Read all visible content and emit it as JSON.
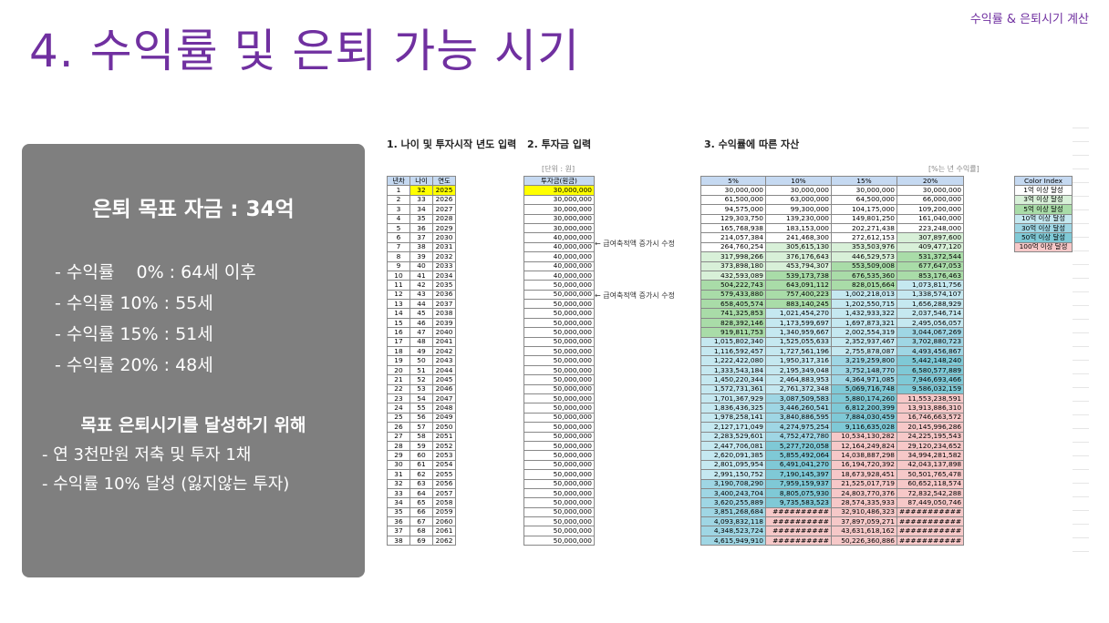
{
  "corner_label": "수익률 & 은퇴시기 계산",
  "title": "4. 수익률 및 은퇴 가능 시기",
  "summary": {
    "goal": "은퇴 목표 자금 : 34억",
    "rates": [
      "- 수익률    0% : 64세 이후",
      "- 수익률 10% : 55세",
      "- 수익률 15% : 51세",
      "- 수익률 20% : 48세"
    ],
    "subhead": "목표 은퇴시기를 달성하기 위해",
    "actions": [
      "- 연 3천만원 저축 및 투자 1채",
      "- 수익률 10% 달성 (잃지않는 투자)"
    ]
  },
  "sections": {
    "s1": "1. 나이 및 투자시작 년도 입력",
    "s2": "2. 투자금 입력",
    "s3": "3. 수익률에 따른 자산",
    "unit": "[단위 : 원]",
    "rate_note": "[%는 년 수익률]"
  },
  "notes": [
    "← 급여축적액 증가시 수정",
    "← 급여축적액 증가시 수정"
  ],
  "headers": {
    "t1": [
      "년차",
      "나이",
      "연도"
    ],
    "t2": "투자금(원금)",
    "t3": [
      "5%",
      "10%",
      "15%",
      "20%"
    ]
  },
  "legend": {
    "title": "Color Index",
    "items": [
      "1억 이상 달성",
      "3억 이상 달성",
      "5억 이상 달성",
      "10억 이상 달성",
      "30억 이상 달성",
      "50억 이상 달성",
      "100억 이상 달성"
    ],
    "colors": [
      "#ffffff",
      "#d8f0d8",
      "#a9dca8",
      "#c5e8f0",
      "#9fd6e4",
      "#7fc9d6",
      "#f6c8c8"
    ]
  },
  "rows": [
    [
      "1",
      "32",
      "2025",
      "30,000,000",
      "30,000,000",
      "30,000,000",
      "30,000,000",
      "30,000,000"
    ],
    [
      "2",
      "33",
      "2026",
      "30,000,000",
      "61,500,000",
      "63,000,000",
      "64,500,000",
      "66,000,000"
    ],
    [
      "3",
      "34",
      "2027",
      "30,000,000",
      "94,575,000",
      "99,300,000",
      "104,175,000",
      "109,200,000"
    ],
    [
      "4",
      "35",
      "2028",
      "30,000,000",
      "129,303,750",
      "139,230,000",
      "149,801,250",
      "161,040,000"
    ],
    [
      "5",
      "36",
      "2029",
      "30,000,000",
      "165,768,938",
      "183,153,000",
      "202,271,438",
      "223,248,000"
    ],
    [
      "6",
      "37",
      "2030",
      "40,000,000",
      "214,057,384",
      "241,468,300",
      "272,612,153",
      "307,897,600"
    ],
    [
      "7",
      "38",
      "2031",
      "40,000,000",
      "264,760,254",
      "305,615,130",
      "353,503,976",
      "409,477,120"
    ],
    [
      "8",
      "39",
      "2032",
      "40,000,000",
      "317,998,266",
      "376,176,643",
      "446,529,573",
      "531,372,544"
    ],
    [
      "9",
      "40",
      "2033",
      "40,000,000",
      "373,898,180",
      "453,794,307",
      "553,509,008",
      "677,647,053"
    ],
    [
      "10",
      "41",
      "2034",
      "40,000,000",
      "432,593,089",
      "539,173,738",
      "676,535,360",
      "853,176,463"
    ],
    [
      "11",
      "42",
      "2035",
      "50,000,000",
      "504,222,743",
      "643,091,112",
      "828,015,664",
      "1,073,811,756"
    ],
    [
      "12",
      "43",
      "2036",
      "50,000,000",
      "579,433,880",
      "757,400,223",
      "1,002,218,013",
      "1,338,574,107"
    ],
    [
      "13",
      "44",
      "2037",
      "50,000,000",
      "658,405,574",
      "883,140,245",
      "1,202,550,715",
      "1,656,288,929"
    ],
    [
      "14",
      "45",
      "2038",
      "50,000,000",
      "741,325,853",
      "1,021,454,270",
      "1,432,933,322",
      "2,037,546,714"
    ],
    [
      "15",
      "46",
      "2039",
      "50,000,000",
      "828,392,146",
      "1,173,599,697",
      "1,697,873,321",
      "2,495,056,057"
    ],
    [
      "16",
      "47",
      "2040",
      "50,000,000",
      "919,811,753",
      "1,340,959,667",
      "2,002,554,319",
      "3,044,067,269"
    ],
    [
      "17",
      "48",
      "2041",
      "50,000,000",
      "1,015,802,340",
      "1,525,055,633",
      "2,352,937,467",
      "3,702,880,723"
    ],
    [
      "18",
      "49",
      "2042",
      "50,000,000",
      "1,116,592,457",
      "1,727,561,196",
      "2,755,878,087",
      "4,493,456,867"
    ],
    [
      "19",
      "50",
      "2043",
      "50,000,000",
      "1,222,422,080",
      "1,950,317,316",
      "3,219,259,800",
      "5,442,148,240"
    ],
    [
      "20",
      "51",
      "2044",
      "50,000,000",
      "1,333,543,184",
      "2,195,349,048",
      "3,752,148,770",
      "6,580,577,889"
    ],
    [
      "21",
      "52",
      "2045",
      "50,000,000",
      "1,450,220,344",
      "2,464,883,953",
      "4,364,971,085",
      "7,946,693,466"
    ],
    [
      "22",
      "53",
      "2046",
      "50,000,000",
      "1,572,731,361",
      "2,761,372,348",
      "5,069,716,748",
      "9,586,032,159"
    ],
    [
      "23",
      "54",
      "2047",
      "50,000,000",
      "1,701,367,929",
      "3,087,509,583",
      "5,880,174,260",
      "11,553,238,591"
    ],
    [
      "24",
      "55",
      "2048",
      "50,000,000",
      "1,836,436,325",
      "3,446,260,541",
      "6,812,200,399",
      "13,913,886,310"
    ],
    [
      "25",
      "56",
      "2049",
      "50,000,000",
      "1,978,258,141",
      "3,840,886,595",
      "7,884,030,459",
      "16,746,663,572"
    ],
    [
      "26",
      "57",
      "2050",
      "50,000,000",
      "2,127,171,049",
      "4,274,975,254",
      "9,116,635,028",
      "20,145,996,286"
    ],
    [
      "27",
      "58",
      "2051",
      "50,000,000",
      "2,283,529,601",
      "4,752,472,780",
      "10,534,130,282",
      "24,225,195,543"
    ],
    [
      "28",
      "59",
      "2052",
      "50,000,000",
      "2,447,706,081",
      "5,277,720,058",
      "12,164,249,824",
      "29,120,234,652"
    ],
    [
      "29",
      "60",
      "2053",
      "50,000,000",
      "2,620,091,385",
      "5,855,492,064",
      "14,038,887,298",
      "34,994,281,582"
    ],
    [
      "30",
      "61",
      "2054",
      "50,000,000",
      "2,801,095,954",
      "6,491,041,270",
      "16,194,720,392",
      "42,043,137,898"
    ],
    [
      "31",
      "62",
      "2055",
      "50,000,000",
      "2,991,150,752",
      "7,190,145,397",
      "18,673,928,451",
      "50,501,765,478"
    ],
    [
      "32",
      "63",
      "2056",
      "50,000,000",
      "3,190,708,290",
      "7,959,159,937",
      "21,525,017,719",
      "60,652,118,574"
    ],
    [
      "33",
      "64",
      "2057",
      "50,000,000",
      "3,400,243,704",
      "8,805,075,930",
      "24,803,770,376",
      "72,832,542,288"
    ],
    [
      "34",
      "65",
      "2058",
      "50,000,000",
      "3,620,255,889",
      "9,735,583,523",
      "28,574,335,933",
      "87,449,050,746"
    ],
    [
      "35",
      "66",
      "2059",
      "50,000,000",
      "3,851,268,684",
      "##########",
      "32,910,486,323",
      "###########"
    ],
    [
      "36",
      "67",
      "2060",
      "50,000,000",
      "4,093,832,118",
      "##########",
      "37,897,059,271",
      "###########"
    ],
    [
      "37",
      "68",
      "2061",
      "50,000,000",
      "4,348,523,724",
      "##########",
      "43,631,618,162",
      "###########"
    ],
    [
      "38",
      "69",
      "2062",
      "50,000,000",
      "4,615,949,910",
      "##########",
      "50,226,360,886",
      "###########"
    ]
  ]
}
